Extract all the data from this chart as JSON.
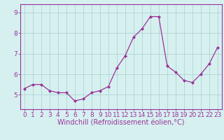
{
  "x": [
    0,
    1,
    2,
    3,
    4,
    5,
    6,
    7,
    8,
    9,
    10,
    11,
    12,
    13,
    14,
    15,
    16,
    17,
    18,
    19,
    20,
    21,
    22,
    23
  ],
  "y": [
    5.3,
    5.5,
    5.5,
    5.2,
    5.1,
    5.1,
    4.7,
    4.8,
    5.1,
    5.2,
    5.4,
    6.3,
    6.9,
    7.8,
    8.2,
    8.8,
    8.8,
    6.4,
    6.1,
    5.7,
    5.6,
    6.0,
    6.5,
    7.3
  ],
  "line_color": "#993399",
  "marker": "D",
  "marker_size": 2,
  "bg_color": "#d6f0f0",
  "grid_color": "#b0d4d4",
  "xlabel": "Windchill (Refroidissement éolien,°C)",
  "xlabel_color": "#993399",
  "xlabel_fontsize": 7,
  "ylabel_ticks": [
    5,
    6,
    7,
    8,
    9
  ],
  "ylim": [
    4.3,
    9.4
  ],
  "xlim": [
    -0.5,
    23.5
  ],
  "tick_color": "#993399",
  "tick_fontsize": 6.5,
  "spine_color": "#993399"
}
